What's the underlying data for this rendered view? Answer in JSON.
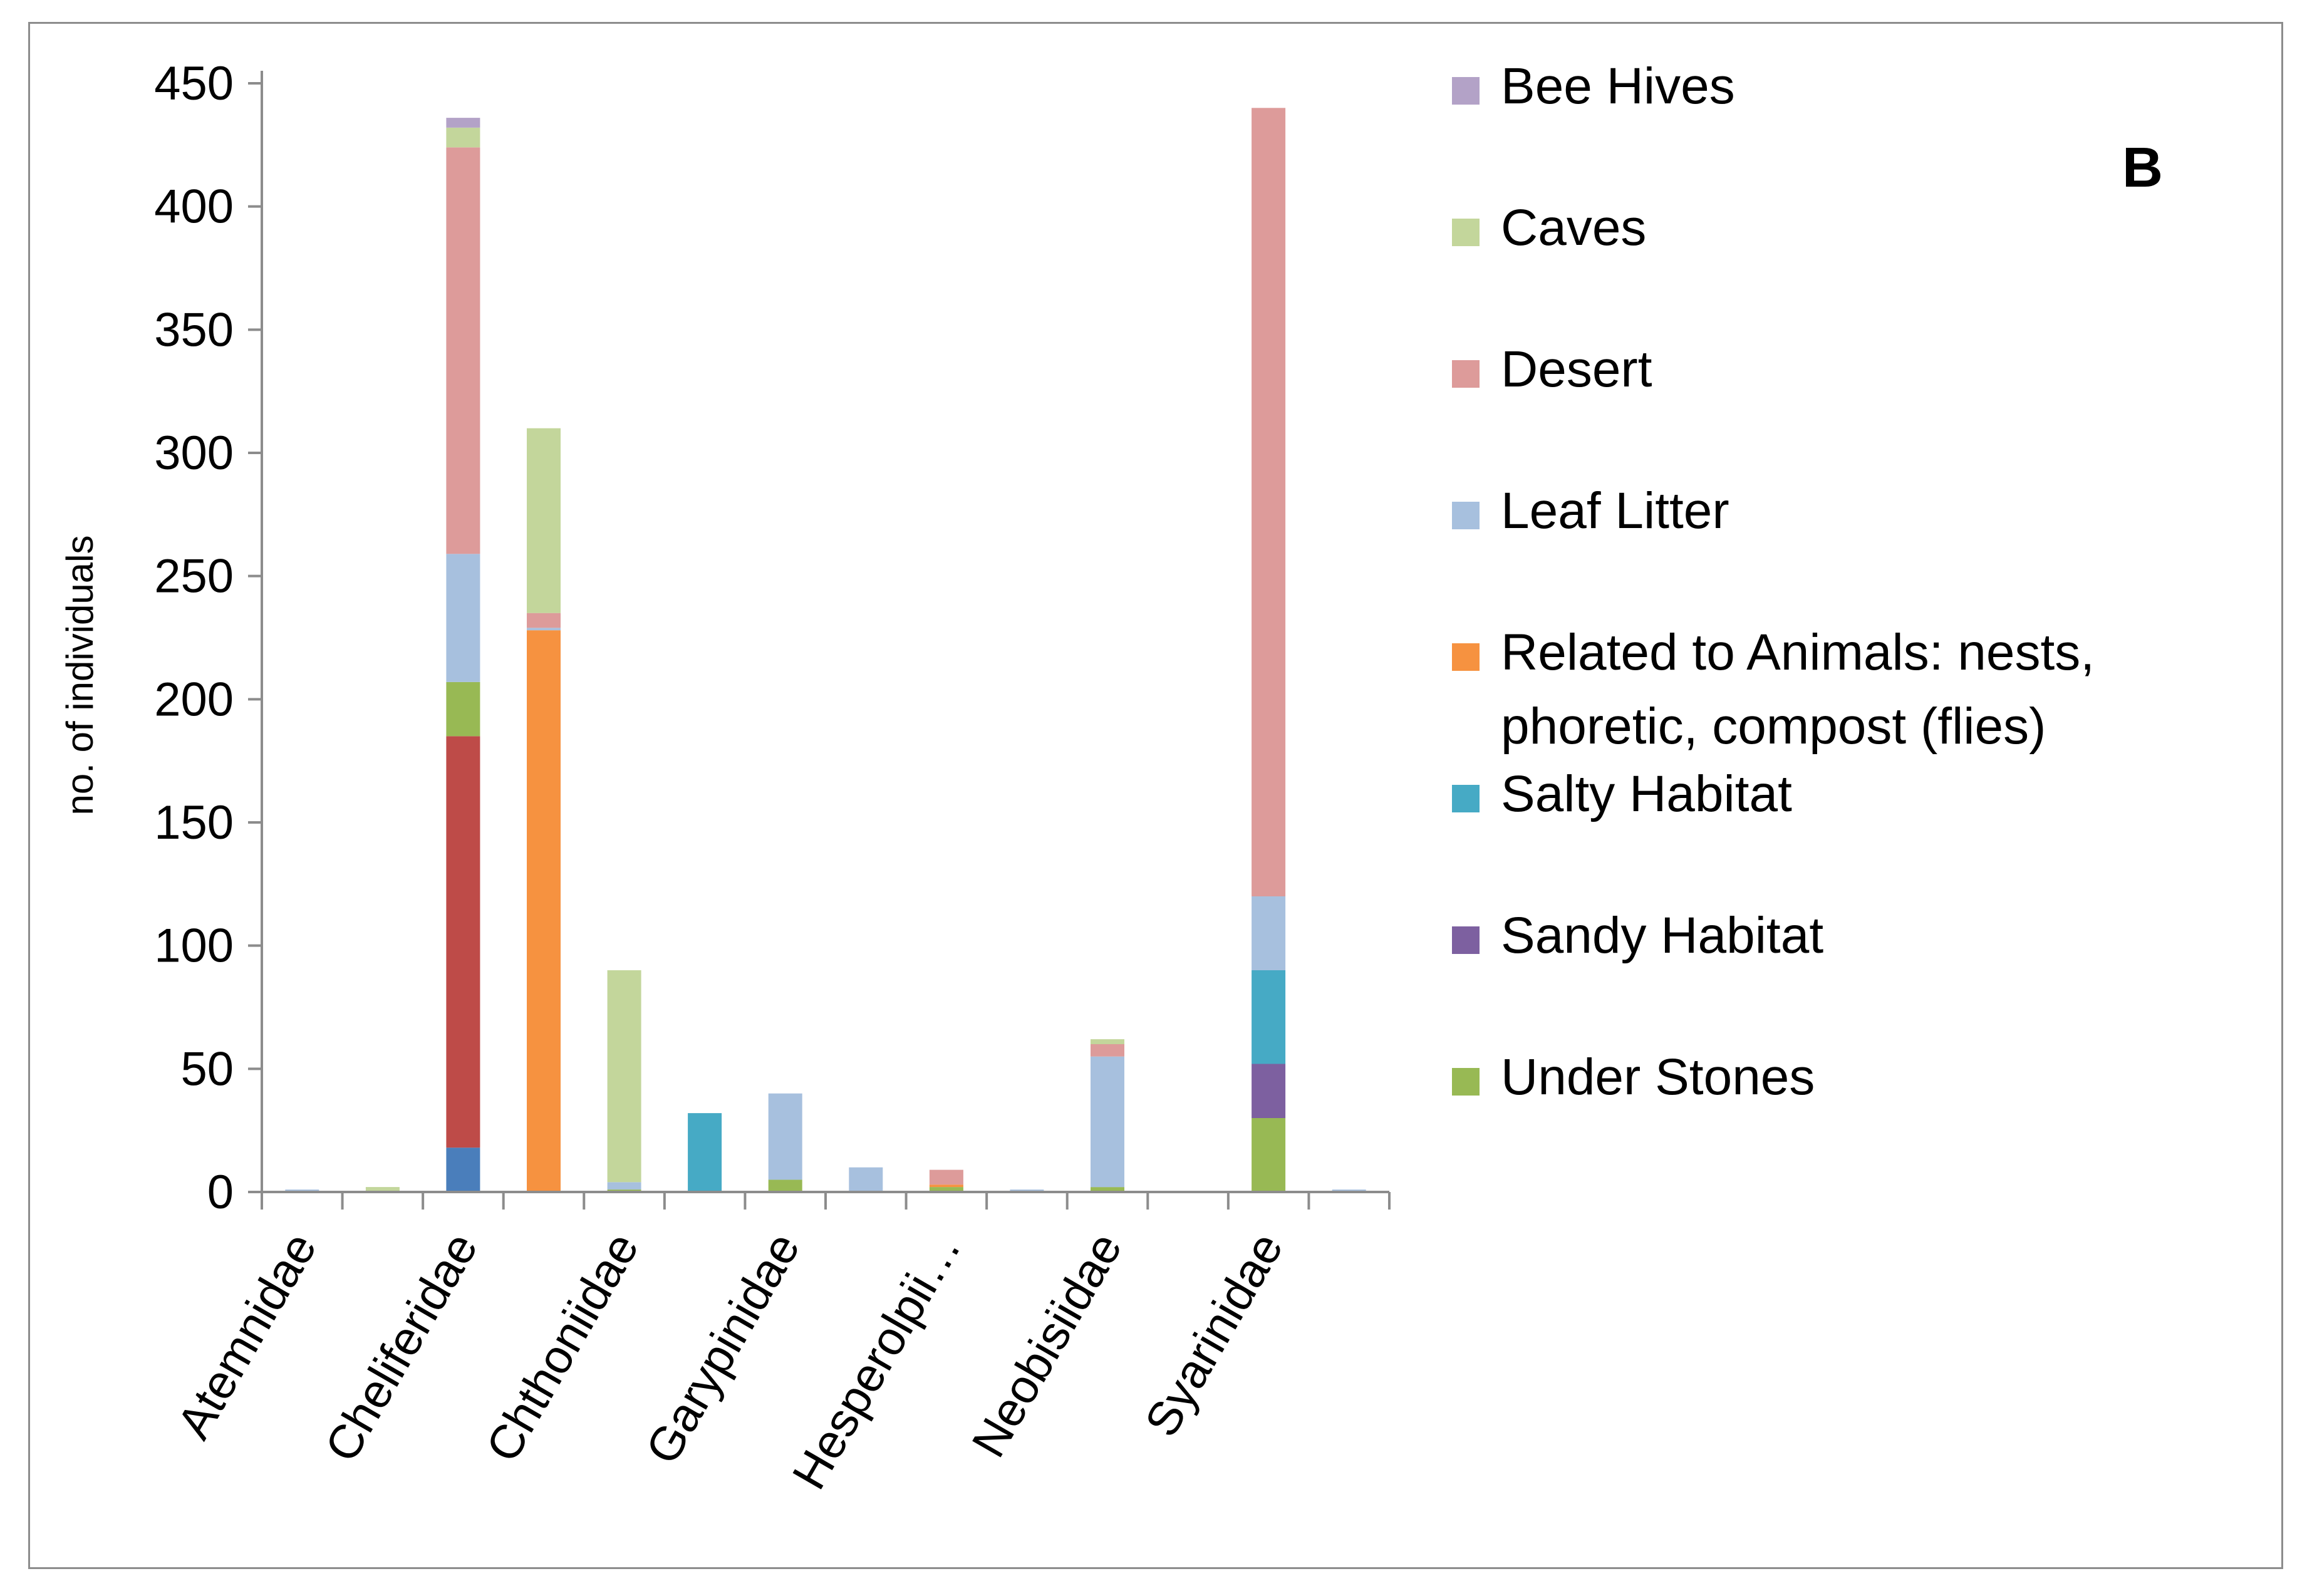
{
  "chart_data": {
    "type": "bar",
    "stacked": true,
    "panel_label": "B",
    "ylabel": "no. of individuals",
    "xlabel": "",
    "ylim": [
      0,
      450
    ],
    "yticks": [
      0,
      50,
      100,
      150,
      200,
      250,
      300,
      350,
      400,
      450
    ],
    "grid": false,
    "legend_position": "right",
    "categories": [
      "Atemnidae",
      "",
      "Cheliferidae",
      "",
      "Chthoniidae",
      "",
      "Garypinidae",
      "",
      "Hesperolpii…",
      "",
      "Neobisiidae",
      "",
      "Syarinidae",
      ""
    ],
    "series": [
      {
        "name": "",
        "color": "#4a7ebb",
        "values": [
          0,
          0,
          18,
          0,
          0,
          0,
          0,
          0,
          0,
          0,
          0,
          0,
          0,
          0
        ]
      },
      {
        "name": "",
        "color": "#be4b48",
        "values": [
          0,
          0,
          167,
          0,
          0,
          0,
          0,
          0,
          0,
          0,
          0,
          0,
          0,
          0
        ]
      },
      {
        "name": "Under Stones",
        "color": "#98b954",
        "values": [
          0,
          0,
          22,
          0,
          1,
          0,
          5,
          0,
          2,
          0,
          2,
          0,
          30,
          0
        ]
      },
      {
        "name": "Sandy Habitat",
        "color": "#7d60a0",
        "values": [
          0,
          0,
          0,
          0,
          0,
          0,
          0,
          0,
          0,
          0,
          0,
          0,
          22,
          0
        ]
      },
      {
        "name": "Salty Habitat",
        "color": "#46aac5",
        "values": [
          0,
          0,
          0,
          0,
          0,
          32,
          0,
          0,
          0,
          0,
          0,
          0,
          38,
          0
        ]
      },
      {
        "name": "Related to Animals: nests, phoretic, compost (flies)",
        "color": "#f69240",
        "values": [
          0,
          0,
          0,
          228,
          0,
          0,
          0,
          0,
          1,
          0,
          0,
          0,
          0,
          0
        ]
      },
      {
        "name": "Leaf Litter",
        "color": "#a7c0de",
        "values": [
          1,
          0,
          52,
          1,
          3,
          0,
          35,
          10,
          0,
          1,
          53,
          0,
          30,
          1
        ]
      },
      {
        "name": "Desert",
        "color": "#dd9b9a",
        "values": [
          0,
          0,
          165,
          6,
          0,
          0,
          0,
          0,
          6,
          0,
          5,
          0,
          320,
          0
        ]
      },
      {
        "name": "Caves",
        "color": "#c3d69b",
        "values": [
          0,
          2,
          8,
          75,
          86,
          0,
          0,
          0,
          0,
          0,
          2,
          0,
          0,
          0
        ]
      },
      {
        "name": "Bee Hives",
        "color": "#b3a2c7",
        "values": [
          0,
          0,
          4,
          0,
          0,
          0,
          0,
          0,
          0,
          0,
          0,
          0,
          0,
          0
        ]
      }
    ],
    "legend": [
      {
        "label": "Bee Hives",
        "color": "#b3a2c7"
      },
      {
        "label": "Caves",
        "color": "#c3d69b"
      },
      {
        "label": "Desert",
        "color": "#dd9b9a"
      },
      {
        "label": "Leaf Litter",
        "color": "#a7c0de"
      },
      {
        "label": "Related to Animals: nests, phoretic, compost (flies)",
        "lines": [
          "Related to Animals: nests,",
          "phoretic, compost (flies)"
        ],
        "color": "#f69240"
      },
      {
        "label": "Salty Habitat",
        "color": "#46aac5"
      },
      {
        "label": "Sandy Habitat",
        "color": "#7d60a0"
      },
      {
        "label": "Under Stones",
        "color": "#98b954"
      }
    ]
  }
}
